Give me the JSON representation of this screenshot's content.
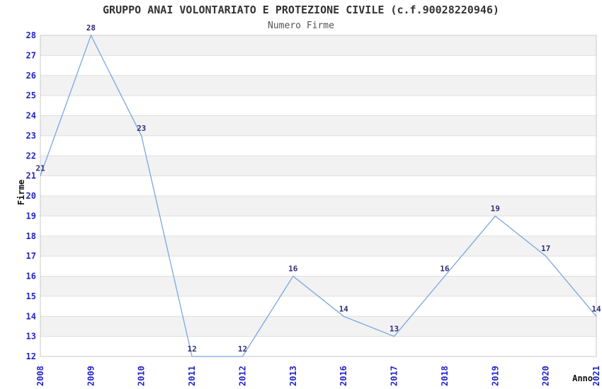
{
  "header": {
    "title": "GRUPPO ANAI VOLONTARIATO E PROTEZIONE CIVILE (c.f.90028220946)",
    "subtitle": "Numero Firme"
  },
  "chart_data": {
    "type": "line",
    "title": "GRUPPO ANAI VOLONTARIATO E PROTEZIONE CIVILE (c.f.90028220946)",
    "subtitle": "Numero Firme",
    "categories": [
      "2008",
      "2009",
      "2010",
      "2011",
      "2012",
      "2013",
      "2016",
      "2017",
      "2018",
      "2019",
      "2020",
      "2021"
    ],
    "values": [
      21,
      28,
      23,
      12,
      12,
      16,
      14,
      13,
      16,
      19,
      17,
      14
    ],
    "series": [
      {
        "name": "Numero Firme",
        "values": [
          21,
          28,
          23,
          12,
          12,
          16,
          14,
          13,
          16,
          19,
          17,
          14
        ]
      }
    ],
    "xlabel": "Anno",
    "ylabel": "Firme",
    "ylim": [
      12,
      28
    ],
    "ytick_step": 1,
    "grid": "horizontal-bands-alternating",
    "legend": "none",
    "point_labels_visible": true,
    "x_tick_rotation_deg": -90,
    "colors": {
      "line": "#79a7e0",
      "tick_label": "#2323c8",
      "point_label": "#2e2e78",
      "band_gray": "#f2f2f2",
      "band_white": "#ffffff",
      "gridline": "#e0e0e0",
      "plot_border": "#c9c9c9",
      "title": "#333333",
      "subtitle": "#555555",
      "axis_title": "#111111",
      "background": "#ffffff"
    }
  }
}
